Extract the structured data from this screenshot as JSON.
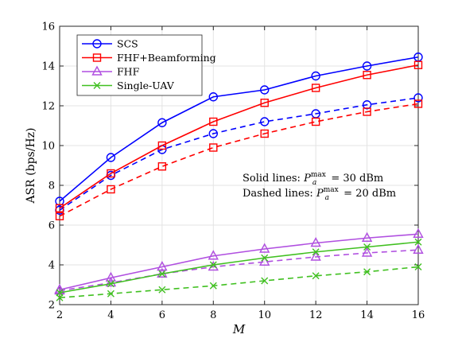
{
  "chart_data": {
    "type": "line",
    "xlabel": "M",
    "ylabel": "ASR (bps/Hz)",
    "x": [
      2,
      4,
      6,
      8,
      10,
      12,
      14,
      16
    ],
    "xlim": [
      2,
      16
    ],
    "ylim": [
      2,
      16
    ],
    "xticks": [
      "2",
      "4",
      "6",
      "8",
      "10",
      "12",
      "14",
      "16"
    ],
    "yticks": [
      "2",
      "4",
      "6",
      "8",
      "10",
      "12",
      "14",
      "16"
    ],
    "grid": true,
    "legend_position": "top-left",
    "series": [
      {
        "name": "SCS",
        "color": "#0000ff",
        "marker": "circle",
        "style": "solid",
        "values": [
          7.2,
          9.4,
          11.15,
          12.45,
          12.8,
          13.5,
          14.0,
          14.45
        ]
      },
      {
        "name": "SCS",
        "color": "#0000ff",
        "marker": "circle",
        "style": "dashed",
        "values": [
          6.75,
          8.5,
          9.8,
          10.6,
          11.2,
          11.6,
          12.05,
          12.4
        ]
      },
      {
        "name": "FHF+Beamforming",
        "color": "#ff0000",
        "marker": "square",
        "style": "solid",
        "values": [
          6.85,
          8.6,
          10.0,
          11.2,
          12.15,
          12.9,
          13.55,
          14.05
        ]
      },
      {
        "name": "FHF+Beamforming",
        "color": "#ff0000",
        "marker": "square",
        "style": "dashed",
        "values": [
          6.45,
          7.8,
          8.95,
          9.9,
          10.6,
          11.2,
          11.7,
          12.1
        ]
      },
      {
        "name": "FHF",
        "color": "#b04fe0",
        "marker": "triangle",
        "style": "solid",
        "values": [
          2.75,
          3.35,
          3.9,
          4.45,
          4.8,
          5.1,
          5.35,
          5.55
        ]
      },
      {
        "name": "FHF",
        "color": "#b04fe0",
        "marker": "triangle",
        "style": "dashed",
        "values": [
          2.7,
          3.1,
          3.55,
          3.9,
          4.15,
          4.4,
          4.6,
          4.75
        ]
      },
      {
        "name": "Single-UAV",
        "color": "#40c020",
        "marker": "x",
        "style": "solid",
        "values": [
          2.6,
          3.05,
          3.55,
          4.0,
          4.35,
          4.65,
          4.9,
          5.15
        ]
      },
      {
        "name": "Single-UAV",
        "color": "#40c020",
        "marker": "x",
        "style": "dashed",
        "values": [
          2.35,
          2.55,
          2.75,
          2.95,
          3.2,
          3.45,
          3.65,
          3.9
        ]
      }
    ],
    "legend": [
      {
        "name": "SCS",
        "color": "#0000ff",
        "marker": "circle"
      },
      {
        "name": "FHF+Beamforming",
        "color": "#ff0000",
        "marker": "square"
      },
      {
        "name": "FHF",
        "color": "#b04fe0",
        "marker": "triangle"
      },
      {
        "name": "Single-UAV",
        "color": "#40c020",
        "marker": "x"
      }
    ],
    "annotations": {
      "solid_prefix": "Solid lines: ",
      "solid_value": "= 30 dBm",
      "dashed_prefix": "Dashed lines: ",
      "dashed_value": "= 20 dBm",
      "symbol_base": "P",
      "symbol_sub": "a",
      "symbol_sup": "max"
    }
  }
}
